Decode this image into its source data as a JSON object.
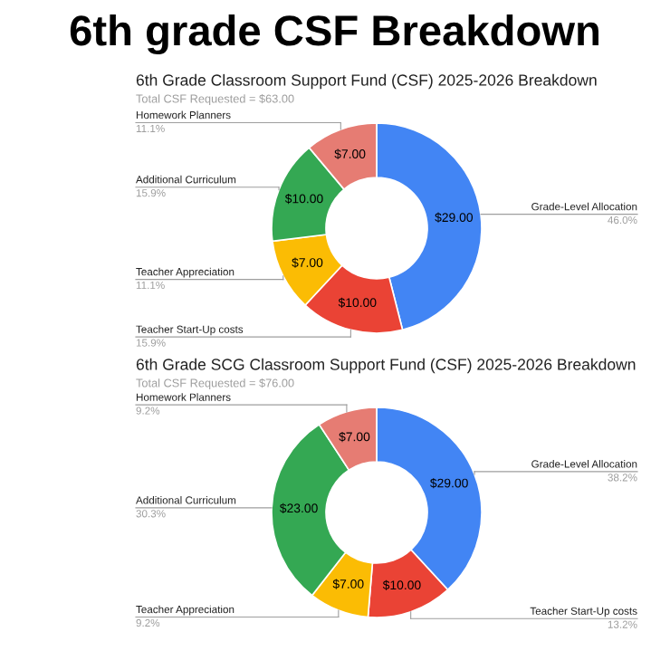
{
  "chart_data": [
    {
      "type": "other",
      "title": "6th grade CSF Breakdown"
    },
    {
      "type": "donut",
      "title": "6th Grade Classroom Support Fund (CSF) 2025-2026 Breakdown",
      "subtitle": "Total CSF Requested = $63.00",
      "categories": [
        "Grade-Level Allocation",
        "Teacher Start-Up costs",
        "Teacher Appreciation",
        "Additional Curriculum",
        "Homework Planners"
      ],
      "values": [
        29,
        10,
        7,
        10,
        7
      ],
      "colors": [
        "#4285f4",
        "#ea4335",
        "#fbbc04",
        "#34a853",
        "#e67c73"
      ],
      "value_labels": [
        "$29.00",
        "$10.00",
        "$7.00",
        "$10.00",
        "$7.00"
      ],
      "annotations": [
        "46.0%",
        "15.9%",
        "11.1%",
        "15.9%",
        "11.1%"
      ]
    },
    {
      "type": "donut",
      "title": "6th Grade SCG Classroom Support Fund (CSF) 2025-2026 Breakdown",
      "subtitle": "Total CSF Requested = $76.00",
      "categories": [
        "Grade-Level Allocation",
        "Teacher Start-Up costs",
        "Teacher Appreciation",
        "Additional Curriculum",
        "Homework Planners"
      ],
      "values": [
        29,
        10,
        7,
        23,
        7
      ],
      "colors": [
        "#4285f4",
        "#ea4335",
        "#fbbc04",
        "#34a853",
        "#e67c73"
      ],
      "value_labels": [
        "$29.00",
        "$10.00",
        "$7.00",
        "$23.00",
        "$7.00"
      ],
      "annotations": [
        "38.2%",
        "13.2%",
        "9.2%",
        "30.3%",
        "9.2%"
      ]
    }
  ]
}
